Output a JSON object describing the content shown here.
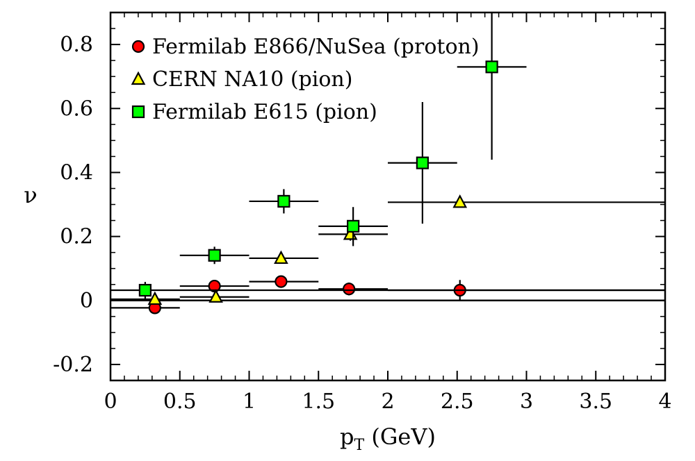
{
  "chart_data": {
    "type": "scatter",
    "title": "",
    "xlabel": "p",
    "xlabel_subscript": "T",
    "xlabel_unit": " (GeV)",
    "ylabel": "ν",
    "xlim": [
      0,
      4
    ],
    "ylim": [
      -0.25,
      0.9
    ],
    "x_ticks": [
      {
        "value": 0,
        "label": "0"
      },
      {
        "value": 0.5,
        "label": "0.5"
      },
      {
        "value": 1,
        "label": "1"
      },
      {
        "value": 1.5,
        "label": "1.5"
      },
      {
        "value": 2,
        "label": "2"
      },
      {
        "value": 2.5,
        "label": "2.5"
      },
      {
        "value": 3,
        "label": "3"
      },
      {
        "value": 3.5,
        "label": "3.5"
      },
      {
        "value": 4,
        "label": "4"
      }
    ],
    "y_ticks": [
      {
        "value": -0.2,
        "label": "-0.2"
      },
      {
        "value": 0,
        "label": "0"
      },
      {
        "value": 0.2,
        "label": "0.2"
      },
      {
        "value": 0.4,
        "label": "0.4"
      },
      {
        "value": 0.6,
        "label": "0.6"
      },
      {
        "value": 0.8,
        "label": "0.8"
      }
    ],
    "x_minor_step": 0.1,
    "y_minor_step": 0.05,
    "zero_line": true,
    "grid": false,
    "legend": "top-left",
    "series": [
      {
        "name": "Fermilab E866/NuSea (proton)",
        "marker": "circle",
        "color": "#ff0000",
        "points": [
          {
            "x": 0.32,
            "y": -0.023,
            "xlo": 0.0,
            "xhi": 0.5,
            "ylo": -0.038,
            "yhi": -0.008
          },
          {
            "x": 0.75,
            "y": 0.045,
            "xlo": 0.5,
            "xhi": 1.0,
            "ylo": 0.03,
            "yhi": 0.06
          },
          {
            "x": 1.23,
            "y": 0.059,
            "xlo": 1.0,
            "xhi": 1.5,
            "ylo": 0.046,
            "yhi": 0.072
          },
          {
            "x": 1.72,
            "y": 0.036,
            "xlo": 1.5,
            "xhi": 2.0,
            "ylo": 0.016,
            "yhi": 0.056
          },
          {
            "x": 2.52,
            "y": 0.032,
            "xlo": 2.0,
            "xhi": 4.0,
            "ylo": 0.002,
            "yhi": 0.064
          }
        ]
      },
      {
        "name": "CERN NA10 (pion)",
        "marker": "triangle",
        "color": "#ffff00",
        "points": [
          {
            "x": 0.32,
            "y": 0.004,
            "xlo": 0.0,
            "xhi": 0.5,
            "ylo": -0.006,
            "yhi": 0.014
          },
          {
            "x": 0.76,
            "y": 0.011,
            "xlo": 0.5,
            "xhi": 1.0,
            "ylo": 0.001,
            "yhi": 0.021
          },
          {
            "x": 1.23,
            "y": 0.132,
            "xlo": 1.0,
            "xhi": 1.5,
            "ylo": 0.122,
            "yhi": 0.142
          },
          {
            "x": 1.73,
            "y": 0.207,
            "xlo": 1.5,
            "xhi": 2.0,
            "ylo": 0.187,
            "yhi": 0.227
          },
          {
            "x": 2.52,
            "y": 0.307,
            "xlo": 2.0,
            "xhi": 4.0,
            "ylo": 0.297,
            "yhi": 0.317
          }
        ]
      },
      {
        "name": "Fermilab E615 (pion)",
        "marker": "square",
        "color": "#00ff00",
        "points": [
          {
            "x": 0.25,
            "y": 0.032,
            "xlo": 0.0,
            "xhi": 4.0,
            "ylo": 0.006,
            "yhi": 0.058
          },
          {
            "x": 0.75,
            "y": 0.141,
            "xlo": 0.5,
            "xhi": 1.0,
            "ylo": 0.114,
            "yhi": 0.168
          },
          {
            "x": 1.25,
            "y": 0.31,
            "xlo": 1.0,
            "xhi": 1.5,
            "ylo": 0.272,
            "yhi": 0.348
          },
          {
            "x": 1.75,
            "y": 0.232,
            "xlo": 1.5,
            "xhi": 2.0,
            "ylo": 0.17,
            "yhi": 0.292
          },
          {
            "x": 2.25,
            "y": 0.43,
            "xlo": 2.0,
            "xhi": 2.5,
            "ylo": 0.24,
            "yhi": 0.62
          },
          {
            "x": 2.75,
            "y": 0.73,
            "xlo": 2.5,
            "xhi": 3.0,
            "ylo": 0.44,
            "yhi": 0.9
          }
        ]
      }
    ]
  }
}
